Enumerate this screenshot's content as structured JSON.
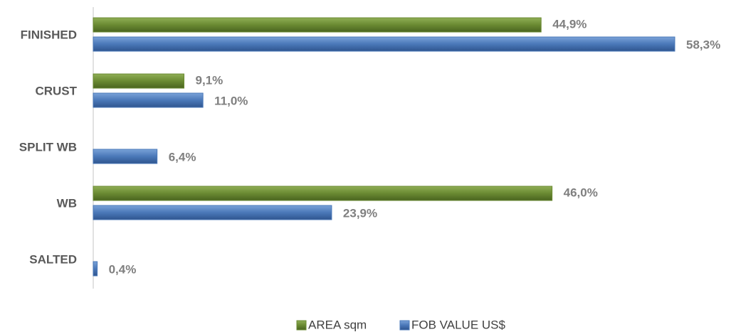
{
  "chart_data": {
    "type": "bar",
    "orientation": "horizontal",
    "categories": [
      "FINISHED",
      "CRUST",
      "SPLIT WB",
      "WB",
      "SALTED"
    ],
    "series": [
      {
        "name": "AREA sqm",
        "color": "#6a8a32",
        "values": [
          44.9,
          9.1,
          null,
          46.0,
          null
        ],
        "value_labels": [
          "44,9%",
          "9,1%",
          null,
          "46,0%",
          null
        ]
      },
      {
        "name": "FOB VALUE US$",
        "color": "#4a78b8",
        "values": [
          58.3,
          11.0,
          6.4,
          23.9,
          0.4
        ],
        "value_labels": [
          "58,3%",
          "11,0%",
          "6,4%",
          "23,9%",
          "0,4%"
        ]
      }
    ],
    "legend": "bottom"
  }
}
